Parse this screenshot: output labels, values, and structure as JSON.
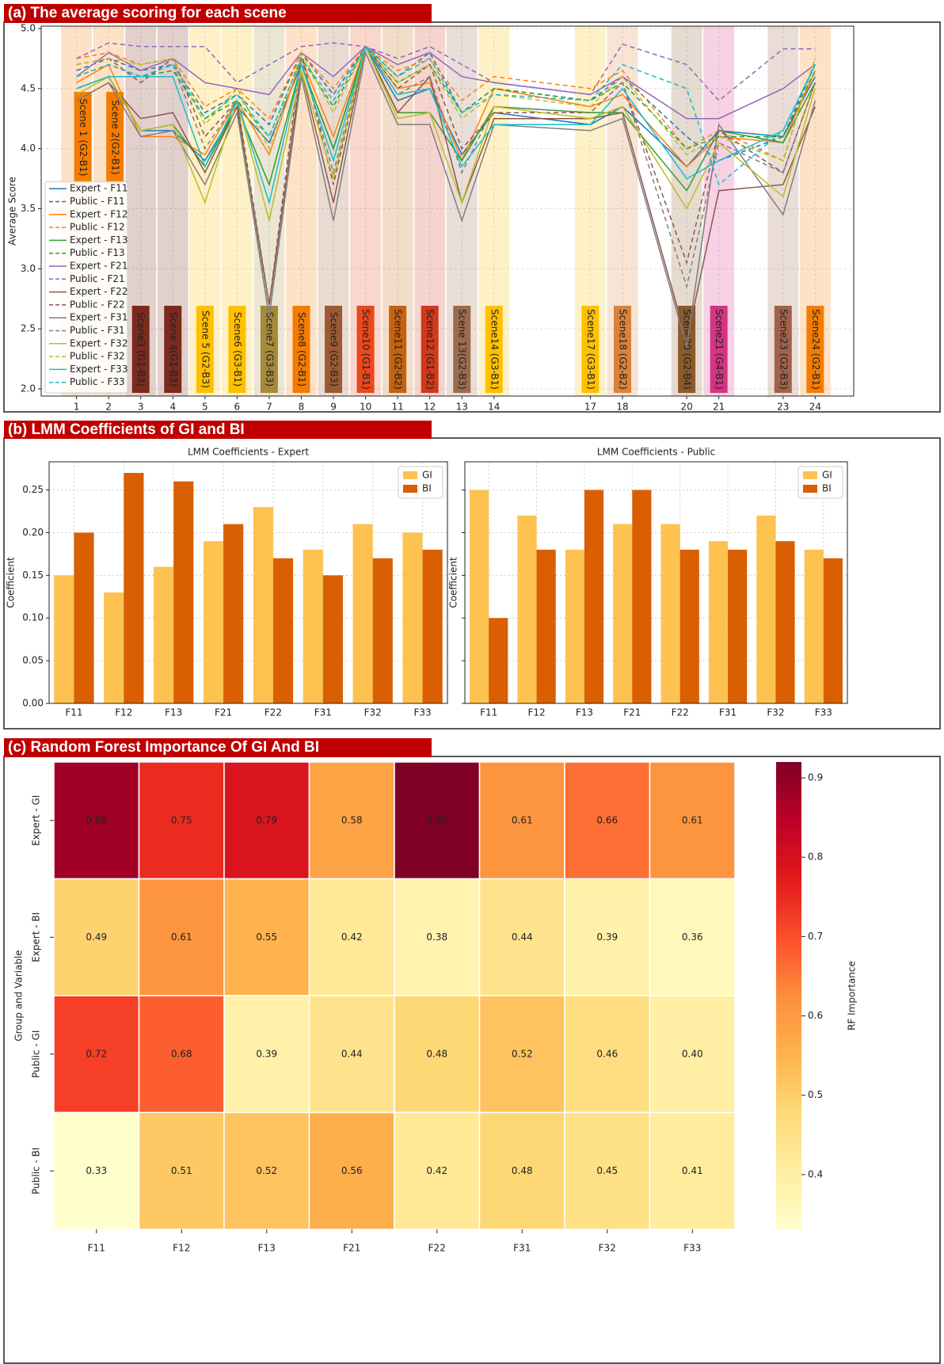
{
  "chart_data": [
    {
      "type": "line",
      "title": "(a) The average scoring for each scene",
      "ylabel": "Average Score",
      "x": [
        1,
        2,
        3,
        4,
        5,
        6,
        7,
        8,
        9,
        10,
        11,
        12,
        13,
        14,
        17,
        18,
        20,
        21,
        23,
        24
      ],
      "xticks": [
        1,
        2,
        3,
        4,
        5,
        6,
        7,
        8,
        9,
        10,
        11,
        12,
        13,
        14,
        17,
        18,
        20,
        21,
        23,
        24
      ],
      "xlim": [
        -0.1,
        25.2
      ],
      "ylim": [
        1.94,
        5.02
      ],
      "yticks": [
        {
          "value": 2,
          "label": "2.0"
        },
        2.5,
        {
          "value": 3,
          "label": "3.0"
        },
        3.5,
        {
          "value": 4,
          "label": "4.0"
        },
        4.5,
        {
          "value": 5,
          "label": "5.0"
        }
      ],
      "grid": true,
      "legend": "lower left",
      "scene_labels": [
        "Scene 1 (G2-B1)",
        "Scene 2(G2-B1)",
        "Scene3 (G1-B3)",
        "Scene 4(G1-B3)",
        "Scene 5 (G2-B3)",
        "Scene6 (G3-B1)",
        "Scene7 (G3-B3)",
        "Scene8 (G2-B1)",
        "Scene9 (G2-B3)",
        "Scene10 (G1-B1)",
        "Scene11 (G2-B2)",
        "Scene12 (G1-B2)",
        "Scene 13(G2-B3)",
        "Scene14 (G3-B1)",
        "Scene17 (G3-B1)",
        "Scene18 (G2-B2)",
        "Scene20 (G2-B4)",
        "Scene21 (G4-B1)",
        "Scene23 (G2-B3)",
        "Scene24 (G2-B1)"
      ],
      "scene_colors": [
        "#f57c00",
        "#f57c00",
        "#7b2a1c",
        "#7b2a1c",
        "#ffc000",
        "#ffc000",
        "#a68a3a",
        "#f57c00",
        "#9c5a32",
        "#e8491d",
        "#c4620f",
        "#d0391a",
        "#9c6b4e",
        "#ffc000",
        "#ffc000",
        "#d9833a",
        "#8b5a2b",
        "#d63384",
        "#a0624a",
        "#f57c00"
      ],
      "series": [
        {
          "name": "Expert - F11",
          "color": "#1f77b4",
          "linestyle": "solid",
          "values": [
            4.5,
            4.6,
            4.15,
            4.15,
            3.9,
            4.35,
            4.05,
            4.7,
            4.0,
            4.85,
            4.4,
            4.5,
            3.95,
            4.3,
            4.2,
            4.35,
            3.85,
            4.15,
            4.1,
            4.6
          ]
        },
        {
          "name": "Public - F11",
          "color": "#1f77b4",
          "linestyle": "dashed",
          "values": [
            4.65,
            4.75,
            4.65,
            4.7,
            4.3,
            4.45,
            4.2,
            4.8,
            4.45,
            4.85,
            4.6,
            4.8,
            4.3,
            4.5,
            4.4,
            4.6,
            4.1,
            3.9,
            4.1,
            4.7
          ]
        },
        {
          "name": "Expert - F12",
          "color": "#ff7f0e",
          "linestyle": "solid",
          "values": [
            4.55,
            4.7,
            4.1,
            4.1,
            3.95,
            4.4,
            3.95,
            4.75,
            4.1,
            4.85,
            4.5,
            4.55,
            3.9,
            4.5,
            4.35,
            4.45,
            3.85,
            4.1,
            4.05,
            4.65
          ]
        },
        {
          "name": "Public - F12",
          "color": "#ff7f0e",
          "linestyle": "dashed",
          "values": [
            4.75,
            4.8,
            4.7,
            4.75,
            4.35,
            4.5,
            4.25,
            4.8,
            4.5,
            4.85,
            4.65,
            4.75,
            4.4,
            4.6,
            4.5,
            4.65,
            4.0,
            4.15,
            3.9,
            4.75
          ]
        },
        {
          "name": "Expert - F13",
          "color": "#2ca02c",
          "linestyle": "solid",
          "values": [
            4.5,
            4.6,
            4.15,
            4.2,
            3.85,
            4.35,
            3.7,
            4.7,
            4.0,
            4.85,
            4.3,
            4.3,
            3.9,
            4.35,
            4.3,
            4.3,
            3.65,
            4.15,
            4.05,
            4.55
          ]
        },
        {
          "name": "Public - F13",
          "color": "#2ca02c",
          "linestyle": "dashed",
          "values": [
            4.6,
            4.7,
            4.6,
            4.65,
            4.25,
            4.4,
            4.1,
            4.75,
            4.35,
            4.85,
            4.55,
            4.7,
            4.3,
            4.5,
            4.4,
            4.55,
            4.0,
            4.1,
            4.1,
            4.65
          ]
        },
        {
          "name": "Expert - F21",
          "color": "#9467bd",
          "linestyle": "solid",
          "values": [
            4.6,
            4.8,
            4.65,
            4.75,
            4.55,
            4.5,
            4.45,
            4.8,
            4.6,
            4.85,
            4.7,
            4.8,
            4.6,
            4.55,
            4.45,
            4.6,
            4.25,
            4.25,
            4.5,
            4.7
          ]
        },
        {
          "name": "Public - F21",
          "color": "#9467bd",
          "linestyle": "dashed",
          "values": [
            4.75,
            4.88,
            4.85,
            4.85,
            4.85,
            4.55,
            4.7,
            4.85,
            4.88,
            4.85,
            4.75,
            4.85,
            4.7,
            4.55,
            4.45,
            4.87,
            4.7,
            4.4,
            4.83,
            4.83
          ]
        },
        {
          "name": "Expert - F22",
          "color": "#8c564b",
          "linestyle": "solid",
          "values": [
            4.4,
            4.55,
            4.25,
            4.3,
            3.8,
            4.35,
            2.7,
            4.65,
            3.55,
            4.85,
            4.3,
            4.6,
            3.55,
            4.25,
            4.25,
            4.3,
            2.4,
            3.65,
            3.7,
            4.35
          ]
        },
        {
          "name": "Public - F22",
          "color": "#8c564b",
          "linestyle": "dashed",
          "values": [
            4.7,
            4.75,
            4.55,
            4.75,
            4.1,
            4.4,
            2.7,
            4.8,
            3.7,
            4.85,
            4.5,
            4.7,
            4.0,
            4.3,
            4.3,
            4.55,
            3.05,
            4.15,
            3.8,
            4.55
          ]
        },
        {
          "name": "Expert - F31",
          "color": "#7f7f7f",
          "linestyle": "solid",
          "values": [
            4.4,
            4.55,
            4.1,
            4.15,
            3.7,
            4.3,
            2.6,
            4.6,
            3.4,
            4.8,
            4.2,
            4.2,
            3.4,
            4.2,
            4.15,
            4.25,
            2.35,
            4.2,
            3.45,
            4.4
          ]
        },
        {
          "name": "Public - F31",
          "color": "#7f7f7f",
          "linestyle": "dashed",
          "values": [
            4.6,
            4.7,
            4.6,
            4.7,
            4.0,
            4.4,
            2.6,
            4.75,
            3.8,
            4.85,
            4.45,
            4.6,
            3.8,
            4.35,
            4.3,
            4.55,
            2.85,
            4.05,
            3.8,
            4.55
          ]
        },
        {
          "name": "Expert - F32",
          "color": "#bcbd22",
          "linestyle": "solid",
          "values": [
            4.45,
            4.6,
            4.15,
            4.2,
            3.55,
            4.4,
            3.4,
            4.65,
            3.75,
            4.85,
            4.25,
            4.3,
            3.55,
            4.35,
            4.25,
            4.35,
            3.5,
            4.05,
            3.6,
            4.5
          ]
        },
        {
          "name": "Public - F32",
          "color": "#bcbd22",
          "linestyle": "dashed",
          "values": [
            4.7,
            4.75,
            4.7,
            4.75,
            4.2,
            4.5,
            4.0,
            4.8,
            4.3,
            4.85,
            4.55,
            4.7,
            4.25,
            4.45,
            4.35,
            4.6,
            3.95,
            4.1,
            3.9,
            4.75
          ]
        },
        {
          "name": "Expert - F33",
          "color": "#17becf",
          "linestyle": "solid",
          "values": [
            4.5,
            4.6,
            4.6,
            4.6,
            3.85,
            4.4,
            3.55,
            4.7,
            3.9,
            4.85,
            4.45,
            4.5,
            3.85,
            4.2,
            4.2,
            4.5,
            3.75,
            3.9,
            4.15,
            4.7
          ]
        },
        {
          "name": "Public - F33",
          "color": "#17becf",
          "linestyle": "dashed",
          "values": [
            4.6,
            4.7,
            4.6,
            4.7,
            4.25,
            4.45,
            4.1,
            4.75,
            4.4,
            4.85,
            4.6,
            4.75,
            4.3,
            4.45,
            4.4,
            4.7,
            4.5,
            3.7,
            4.15,
            4.7
          ]
        }
      ]
    },
    {
      "type": "bar",
      "panel_title": "(b) LMM Coefficients of GI and BI",
      "title": "LMM Coefficients - Expert",
      "ylabel": "Coefficient",
      "categories": [
        "F11",
        "F12",
        "F13",
        "F21",
        "F22",
        "F31",
        "F32",
        "F33"
      ],
      "series": [
        {
          "name": "GI",
          "color": "#fdc24f",
          "values": [
            0.15,
            0.13,
            0.16,
            0.19,
            0.23,
            0.18,
            0.21,
            0.2
          ]
        },
        {
          "name": "BI",
          "color": "#d95f02",
          "values": [
            0.2,
            0.27,
            0.26,
            0.21,
            0.17,
            0.15,
            0.17,
            0.18
          ]
        }
      ],
      "ylim": [
        0,
        0.283
      ],
      "yticks": [
        {
          "value": 0,
          "label": "0.00"
        },
        {
          "value": 0.05,
          "label": "0.05"
        },
        {
          "value": 0.1,
          "label": "0.10"
        },
        {
          "value": 0.15,
          "label": "0.15"
        },
        {
          "value": 0.2,
          "label": "0.20"
        },
        {
          "value": 0.25,
          "label": "0.25"
        }
      ],
      "grid": true,
      "legend": "upper right"
    },
    {
      "type": "bar",
      "title": "LMM Coefficients - Public",
      "ylabel": "Coefficient",
      "categories": [
        "F11",
        "F12",
        "F13",
        "F21",
        "F22",
        "F31",
        "F32",
        "F33"
      ],
      "series": [
        {
          "name": "GI",
          "color": "#fdc24f",
          "values": [
            0.25,
            0.22,
            0.18,
            0.21,
            0.21,
            0.19,
            0.22,
            0.18
          ]
        },
        {
          "name": "BI",
          "color": "#d95f02",
          "values": [
            0.1,
            0.18,
            0.25,
            0.25,
            0.18,
            0.18,
            0.19,
            0.17
          ]
        }
      ],
      "ylim": [
        0,
        0.283
      ],
      "yticks": [
        0,
        0.05,
        0.1,
        0.15,
        0.2,
        0.25
      ],
      "sharey": true,
      "grid": true,
      "legend": "upper right"
    },
    {
      "type": "heatmap",
      "title": "(c) Random Forest Importance Of GI And BI",
      "ylabel": "Group and Variable",
      "columns": [
        "F11",
        "F12",
        "F13",
        "F21",
        "F22",
        "F31",
        "F32",
        "F33"
      ],
      "rows": [
        "Expert - GI",
        "Expert - BI",
        "Public - GI",
        "Public - BI"
      ],
      "values": [
        [
          0.88,
          0.75,
          0.79,
          0.58,
          0.92,
          0.61,
          0.66,
          0.61
        ],
        [
          0.49,
          0.61,
          0.55,
          0.42,
          0.38,
          0.44,
          0.39,
          0.36
        ],
        [
          0.72,
          0.68,
          0.39,
          0.44,
          0.48,
          0.52,
          0.46,
          0.4
        ],
        [
          0.33,
          0.51,
          0.52,
          0.56,
          0.42,
          0.48,
          0.45,
          0.41
        ]
      ],
      "value_labels": [
        [
          "0.88",
          "0.75",
          "0.79",
          "0.58",
          "0.92",
          "0.61",
          "0.66",
          "0.61"
        ],
        [
          "0.49",
          "0.61",
          "0.55",
          "0.42",
          "0.38",
          "0.44",
          "0.39",
          "0.36"
        ],
        [
          "0.72",
          "0.68",
          "0.39",
          "0.44",
          "0.48",
          "0.52",
          "0.46",
          "0.40"
        ],
        [
          "0.33",
          "0.51",
          "0.52",
          "0.56",
          "0.42",
          "0.48",
          "0.45",
          "0.41"
        ]
      ],
      "colormap": "YlOrRd",
      "zlim": [
        0.331,
        0.92
      ],
      "colorbar_ticks": [
        0.4,
        0.5,
        0.6,
        0.7,
        0.8,
        0.9
      ],
      "colorbar_label": "RF Importance"
    }
  ]
}
